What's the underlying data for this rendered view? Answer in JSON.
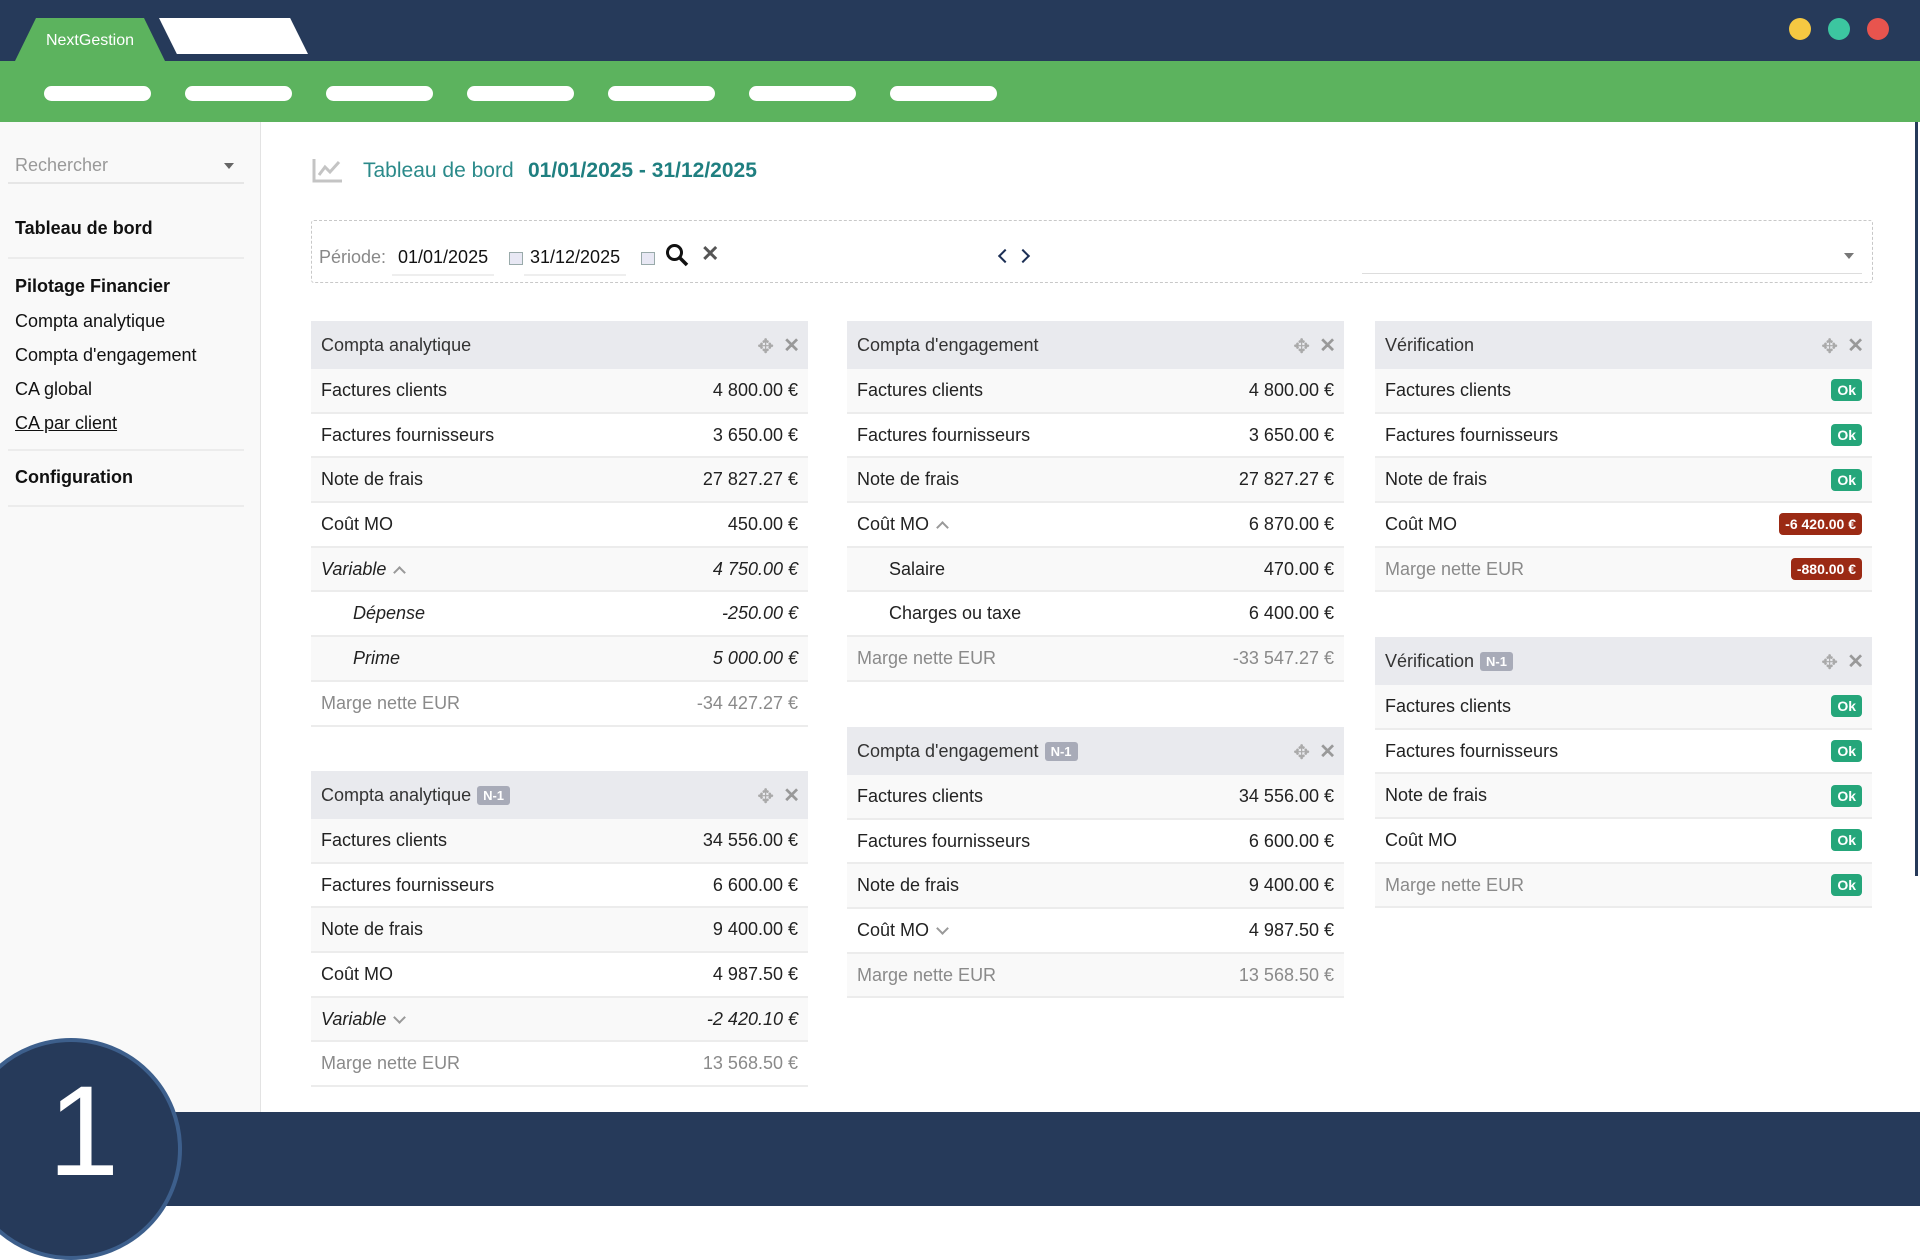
{
  "app": {
    "tab_title": "NextGestion",
    "colors": {
      "dark": "#263a5a",
      "green": "#5cb35e",
      "ok": "#25a67a",
      "error": "#9b2a14"
    },
    "window_dots": [
      "#f5c842",
      "#3cc6a0",
      "#e8544e"
    ]
  },
  "sidebar": {
    "search_placeholder": "Rechercher",
    "items": [
      {
        "label": "Tableau de bord",
        "bold": true
      },
      {
        "label": "Pilotage Financier",
        "bold": true
      },
      {
        "label": "Compta analytique"
      },
      {
        "label": "Compta d'engagement"
      },
      {
        "label": "CA global"
      },
      {
        "label": "CA par client",
        "underline": true
      },
      {
        "label": "Configuration",
        "bold": true
      }
    ]
  },
  "header": {
    "icon": "chart-line-icon",
    "title": "Tableau de bord",
    "date_range": "01/01/2025 - 31/12/2025"
  },
  "filter": {
    "label": "Période:",
    "start": "01/01/2025",
    "end": "31/12/2025"
  },
  "step_number": "1",
  "panels": [
    {
      "title": "Compta analytique",
      "badge": "",
      "rows": [
        [
          "Factures clients",
          "4 800.00 €"
        ],
        [
          "Factures fournisseurs",
          "3 650.00 €"
        ],
        [
          "Note de frais",
          "27 827.27 €"
        ],
        [
          "Coût MO",
          "450.00 €"
        ],
        [
          "Variable",
          "4 750.00 €",
          "it",
          "up"
        ],
        [
          "Dépense",
          "-250.00 €",
          "sub"
        ],
        [
          "Prime",
          "5 000.00 €",
          "sub"
        ],
        [
          "Marge nette EUR",
          "-34 427.27 €",
          "mut"
        ]
      ]
    },
    {
      "title": "Compta analytique",
      "badge": "N-1",
      "rows": [
        [
          "Factures clients",
          "34 556.00 €"
        ],
        [
          "Factures fournisseurs",
          "6 600.00 €"
        ],
        [
          "Note de frais",
          "9 400.00 €"
        ],
        [
          "Coût MO",
          "4 987.50 €"
        ],
        [
          "Variable",
          "-2 420.10 €",
          "it",
          "down"
        ],
        [
          "Marge nette EUR",
          "13 568.50 €",
          "mut"
        ]
      ]
    },
    {
      "title": "Compta d'engagement",
      "badge": "",
      "rows": [
        [
          "Factures clients",
          "4 800.00 €"
        ],
        [
          "Factures fournisseurs",
          "3 650.00 €"
        ],
        [
          "Note de frais",
          "27 827.27 €"
        ],
        [
          "Coût MO",
          "6 870.00 €",
          "",
          "up"
        ],
        [
          "Salaire",
          "470.00 €",
          "plain-sub"
        ],
        [
          "Charges ou taxe",
          "6 400.00 €",
          "plain-sub"
        ],
        [
          "Marge nette EUR",
          "-33 547.27 €",
          "mut"
        ]
      ]
    },
    {
      "title": "Compta d'engagement",
      "badge": "N-1",
      "rows": [
        [
          "Factures clients",
          "34 556.00 €"
        ],
        [
          "Factures fournisseurs",
          "6 600.00 €"
        ],
        [
          "Note de frais",
          "9 400.00 €"
        ],
        [
          "Coût MO",
          "4 987.50 €",
          "",
          "down"
        ],
        [
          "Marge nette EUR",
          "13 568.50 €",
          "mut"
        ]
      ]
    },
    {
      "title": "Vérification",
      "badge": "",
      "rows": [
        [
          "Factures clients",
          {
            "badge": "Ok",
            "status": "ok"
          }
        ],
        [
          "Factures fournisseurs",
          {
            "badge": "Ok",
            "status": "ok"
          }
        ],
        [
          "Note de frais",
          {
            "badge": "Ok",
            "status": "ok"
          }
        ],
        [
          "Coût MO",
          {
            "badge": "-6 420.00 €",
            "status": "error"
          }
        ],
        [
          "Marge nette EUR",
          {
            "badge": "-880.00 €",
            "status": "error"
          },
          "mut"
        ]
      ]
    },
    {
      "title": "Vérification",
      "badge": "N-1",
      "rows": [
        [
          "Factures clients",
          {
            "badge": "Ok",
            "status": "ok"
          }
        ],
        [
          "Factures fournisseurs",
          {
            "badge": "Ok",
            "status": "ok"
          }
        ],
        [
          "Note de frais",
          {
            "badge": "Ok",
            "status": "ok"
          }
        ],
        [
          "Coût MO",
          {
            "badge": "Ok",
            "status": "ok"
          }
        ],
        [
          "Marge nette EUR",
          {
            "badge": "Ok",
            "status": "ok"
          },
          "mut"
        ]
      ]
    }
  ]
}
